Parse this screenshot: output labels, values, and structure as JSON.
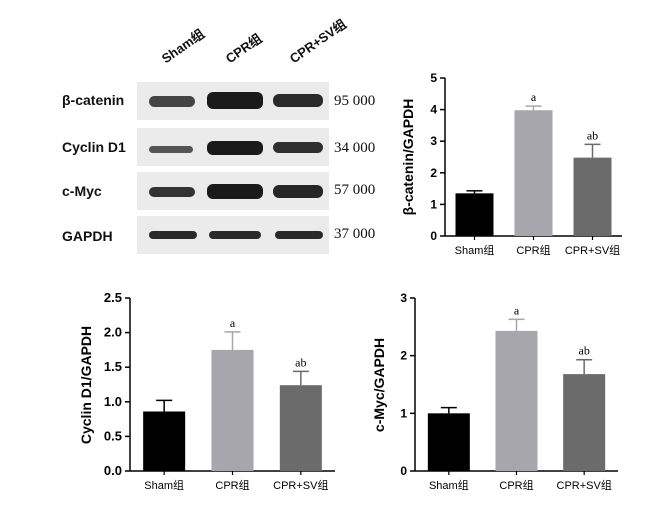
{
  "blot": {
    "lanes": [
      "Sham组",
      "CPR组",
      "CPR+SV组"
    ],
    "rows": [
      {
        "label": "β-catenin",
        "mw": "95 000"
      },
      {
        "label": "Cyclin D1",
        "mw": "34 000"
      },
      {
        "label": "c-Myc",
        "mw": "57 000"
      },
      {
        "label": "GAPDH",
        "mw": "37 000"
      }
    ]
  },
  "chart_data": [
    {
      "type": "bar",
      "categories": [
        "Sham组",
        "CPR组",
        "CPR+SV组"
      ],
      "values": [
        1.35,
        3.98,
        2.48
      ],
      "errors": [
        0.08,
        0.13,
        0.42
      ],
      "annotations": [
        "",
        "a",
        "ab"
      ],
      "ylabel": "β-catenin/GAPDH",
      "ylim": [
        0,
        5
      ],
      "yticks": [
        "0",
        "1",
        "2",
        "3",
        "4",
        "5"
      ],
      "colors": [
        "#000000",
        "#a6a6ac",
        "#6b6b6b"
      ]
    },
    {
      "type": "bar",
      "categories": [
        "Sham组",
        "CPR组",
        "CPR+SV组"
      ],
      "values": [
        0.86,
        1.75,
        1.24
      ],
      "errors": [
        0.16,
        0.26,
        0.2
      ],
      "annotations": [
        "",
        "a",
        "ab"
      ],
      "ylabel": "Cyclin D1/GAPDH",
      "ylim": [
        0,
        2.5
      ],
      "yticks": [
        "0.0",
        "0.5",
        "1.0",
        "1.5",
        "2.0",
        "2.5"
      ],
      "colors": [
        "#000000",
        "#a6a6ac",
        "#6b6b6b"
      ]
    },
    {
      "type": "bar",
      "categories": [
        "Sham组",
        "CPR组",
        "CPR+SV组"
      ],
      "values": [
        1.0,
        2.43,
        1.68
      ],
      "errors": [
        0.1,
        0.2,
        0.25
      ],
      "annotations": [
        "",
        "a",
        "ab"
      ],
      "ylabel": "c-Myc/GAPDH",
      "ylim": [
        0,
        3
      ],
      "yticks": [
        "0",
        "1",
        "2",
        "3"
      ],
      "colors": [
        "#000000",
        "#a6a6ac",
        "#6b6b6b"
      ]
    }
  ]
}
